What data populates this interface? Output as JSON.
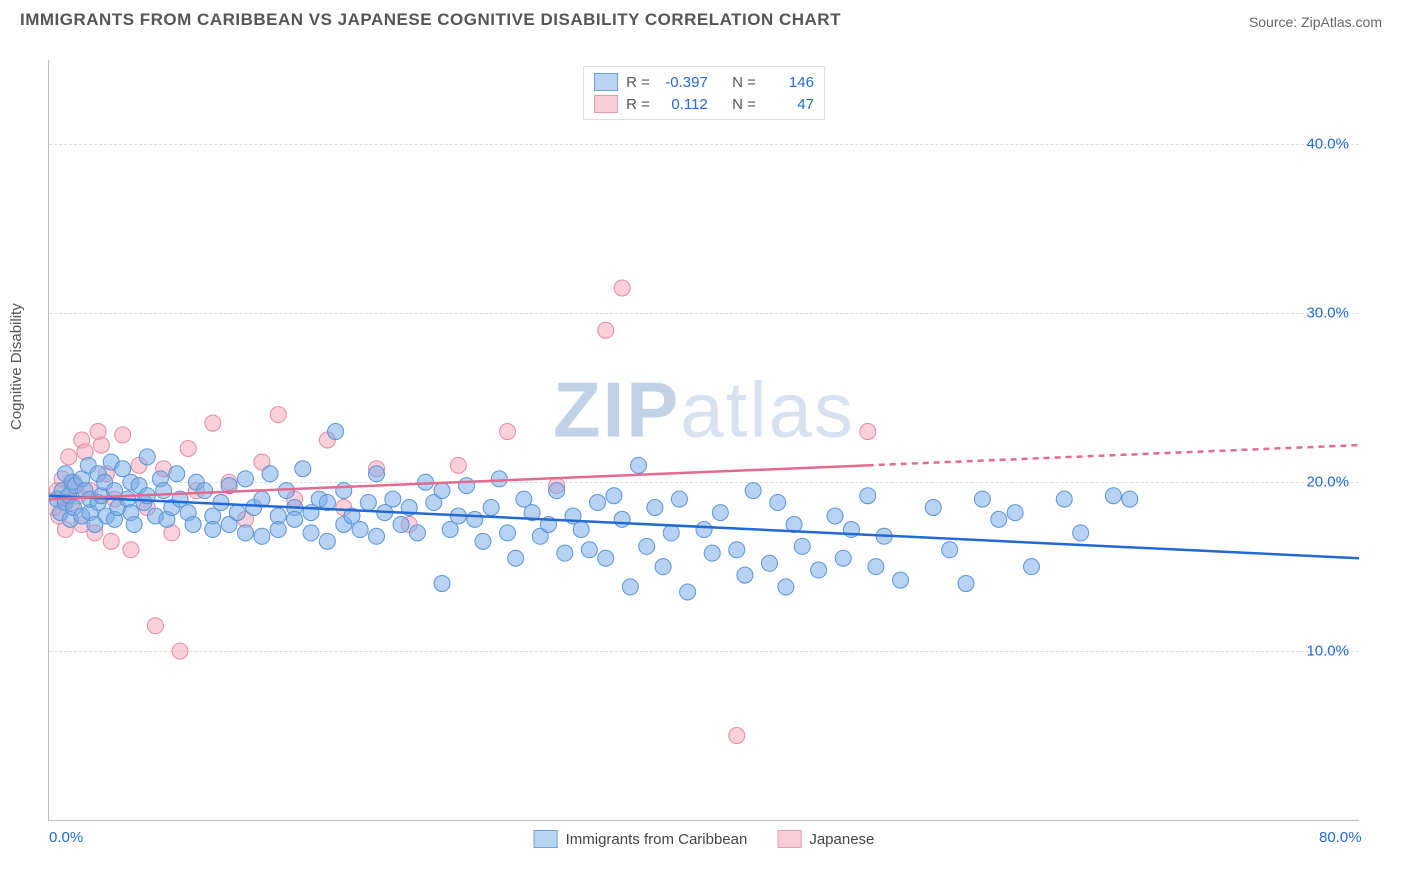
{
  "title": "IMMIGRANTS FROM CARIBBEAN VS JAPANESE COGNITIVE DISABILITY CORRELATION CHART",
  "source": "Source: ZipAtlas.com",
  "ylabel": "Cognitive Disability",
  "watermark_bold": "ZIP",
  "watermark_rest": "atlas",
  "chart": {
    "type": "scatter",
    "xlim": [
      0,
      80
    ],
    "ylim": [
      0,
      45
    ],
    "x_ticks": [
      {
        "v": 0,
        "label": "0.0%"
      },
      {
        "v": 80,
        "label": "80.0%"
      }
    ],
    "y_ticks": [
      {
        "v": 10,
        "label": "10.0%"
      },
      {
        "v": 20,
        "label": "20.0%"
      },
      {
        "v": 30,
        "label": "30.0%"
      },
      {
        "v": 40,
        "label": "40.0%"
      }
    ],
    "background_color": "#ffffff",
    "grid_color": "#dddddd",
    "axis_color": "#bbbbbb",
    "tick_text_color": "#2269d4",
    "marker_radius": 8,
    "marker_stroke_width": 1,
    "trend_line_width": 2.5,
    "series": [
      {
        "name": "Immigrants from Caribbean",
        "fill": "rgba(123,173,232,0.55)",
        "stroke": "#5a94d6",
        "swatch_fill": "#b9d4f2",
        "swatch_border": "#6aa1de",
        "R_label": "R =",
        "R": "-0.397",
        "N_label": "N =",
        "N": "146",
        "trend": {
          "x1": 0,
          "y1": 19.2,
          "x2": 80,
          "y2": 15.5,
          "color": "#2269d4",
          "dash": false
        },
        "points": [
          [
            0.5,
            19.0
          ],
          [
            0.7,
            18.2
          ],
          [
            0.8,
            19.5
          ],
          [
            1.0,
            20.5
          ],
          [
            1.0,
            18.8
          ],
          [
            1.2,
            19.2
          ],
          [
            1.3,
            17.8
          ],
          [
            1.4,
            20.0
          ],
          [
            1.5,
            18.5
          ],
          [
            1.6,
            19.8
          ],
          [
            2.0,
            20.2
          ],
          [
            2.0,
            18.0
          ],
          [
            2.2,
            19.5
          ],
          [
            2.4,
            21.0
          ],
          [
            2.5,
            18.2
          ],
          [
            2.5,
            19.0
          ],
          [
            2.8,
            17.5
          ],
          [
            3.0,
            20.5
          ],
          [
            3.0,
            18.8
          ],
          [
            3.2,
            19.2
          ],
          [
            3.4,
            20.0
          ],
          [
            3.5,
            18.0
          ],
          [
            3.8,
            21.2
          ],
          [
            4.0,
            19.5
          ],
          [
            4.0,
            17.8
          ],
          [
            4.2,
            18.5
          ],
          [
            4.5,
            20.8
          ],
          [
            4.8,
            19.0
          ],
          [
            5.0,
            18.2
          ],
          [
            5.0,
            20.0
          ],
          [
            5.2,
            17.5
          ],
          [
            5.5,
            19.8
          ],
          [
            5.8,
            18.8
          ],
          [
            6.0,
            21.5
          ],
          [
            6.0,
            19.2
          ],
          [
            6.5,
            18.0
          ],
          [
            6.8,
            20.2
          ],
          [
            7.0,
            19.5
          ],
          [
            7.2,
            17.8
          ],
          [
            7.5,
            18.5
          ],
          [
            7.8,
            20.5
          ],
          [
            8.0,
            19.0
          ],
          [
            8.5,
            18.2
          ],
          [
            8.8,
            17.5
          ],
          [
            9.0,
            20.0
          ],
          [
            9.5,
            19.5
          ],
          [
            10.0,
            18.0
          ],
          [
            10.0,
            17.2
          ],
          [
            10.5,
            18.8
          ],
          [
            11.0,
            19.8
          ],
          [
            11.0,
            17.5
          ],
          [
            11.5,
            18.2
          ],
          [
            12.0,
            20.2
          ],
          [
            12.0,
            17.0
          ],
          [
            12.5,
            18.5
          ],
          [
            13.0,
            19.0
          ],
          [
            13.0,
            16.8
          ],
          [
            13.5,
            20.5
          ],
          [
            14.0,
            18.0
          ],
          [
            14.0,
            17.2
          ],
          [
            14.5,
            19.5
          ],
          [
            15.0,
            18.5
          ],
          [
            15.0,
            17.8
          ],
          [
            15.5,
            20.8
          ],
          [
            16.0,
            18.2
          ],
          [
            16.0,
            17.0
          ],
          [
            16.5,
            19.0
          ],
          [
            17.0,
            18.8
          ],
          [
            17.0,
            16.5
          ],
          [
            17.5,
            23.0
          ],
          [
            18.0,
            19.5
          ],
          [
            18.0,
            17.5
          ],
          [
            18.5,
            18.0
          ],
          [
            19.0,
            17.2
          ],
          [
            19.5,
            18.8
          ],
          [
            20.0,
            20.5
          ],
          [
            20.0,
            16.8
          ],
          [
            20.5,
            18.2
          ],
          [
            21.0,
            19.0
          ],
          [
            21.5,
            17.5
          ],
          [
            22.0,
            18.5
          ],
          [
            22.5,
            17.0
          ],
          [
            23.0,
            20.0
          ],
          [
            23.5,
            18.8
          ],
          [
            24.0,
            19.5
          ],
          [
            24.0,
            14.0
          ],
          [
            24.5,
            17.2
          ],
          [
            25.0,
            18.0
          ],
          [
            25.5,
            19.8
          ],
          [
            26.0,
            17.8
          ],
          [
            26.5,
            16.5
          ],
          [
            27.0,
            18.5
          ],
          [
            27.5,
            20.2
          ],
          [
            28.0,
            17.0
          ],
          [
            28.5,
            15.5
          ],
          [
            29.0,
            19.0
          ],
          [
            29.5,
            18.2
          ],
          [
            30.0,
            16.8
          ],
          [
            30.5,
            17.5
          ],
          [
            31.0,
            19.5
          ],
          [
            31.5,
            15.8
          ],
          [
            32.0,
            18.0
          ],
          [
            32.5,
            17.2
          ],
          [
            33.0,
            16.0
          ],
          [
            33.5,
            18.8
          ],
          [
            34.0,
            15.5
          ],
          [
            34.5,
            19.2
          ],
          [
            35.0,
            17.8
          ],
          [
            35.5,
            13.8
          ],
          [
            36.0,
            21.0
          ],
          [
            36.5,
            16.2
          ],
          [
            37.0,
            18.5
          ],
          [
            37.5,
            15.0
          ],
          [
            38.0,
            17.0
          ],
          [
            38.5,
            19.0
          ],
          [
            39.0,
            13.5
          ],
          [
            40.0,
            17.2
          ],
          [
            40.5,
            15.8
          ],
          [
            41.0,
            18.2
          ],
          [
            42.0,
            16.0
          ],
          [
            42.5,
            14.5
          ],
          [
            43.0,
            19.5
          ],
          [
            44.0,
            15.2
          ],
          [
            44.5,
            18.8
          ],
          [
            45.0,
            13.8
          ],
          [
            45.5,
            17.5
          ],
          [
            46.0,
            16.2
          ],
          [
            47.0,
            14.8
          ],
          [
            48.0,
            18.0
          ],
          [
            48.5,
            15.5
          ],
          [
            49.0,
            17.2
          ],
          [
            50.0,
            19.2
          ],
          [
            50.5,
            15.0
          ],
          [
            51.0,
            16.8
          ],
          [
            52.0,
            14.2
          ],
          [
            54.0,
            18.5
          ],
          [
            55.0,
            16.0
          ],
          [
            56.0,
            14.0
          ],
          [
            57.0,
            19.0
          ],
          [
            58.0,
            17.8
          ],
          [
            59.0,
            18.2
          ],
          [
            60.0,
            15.0
          ],
          [
            62.0,
            19.0
          ],
          [
            63.0,
            17.0
          ],
          [
            65.0,
            19.2
          ],
          [
            66.0,
            19.0
          ]
        ]
      },
      {
        "name": "Japanese",
        "fill": "rgba(245,170,190,0.55)",
        "stroke": "#e48aa5",
        "swatch_fill": "#f7cdd8",
        "swatch_border": "#e99bb1",
        "R_label": "R =",
        "R": "0.112",
        "N_label": "N =",
        "N": "47",
        "trend": {
          "x1": 0,
          "y1": 19.0,
          "x2": 50,
          "y2": 21.0,
          "color": "#e36b8e",
          "dash": false
        },
        "trend_ext": {
          "x1": 50,
          "y1": 21.0,
          "x2": 80,
          "y2": 22.2,
          "color": "#e36b8e",
          "dash": true
        },
        "points": [
          [
            0.3,
            18.5
          ],
          [
            0.5,
            19.5
          ],
          [
            0.6,
            18.0
          ],
          [
            0.8,
            20.2
          ],
          [
            1.0,
            19.0
          ],
          [
            1.0,
            17.2
          ],
          [
            1.2,
            21.5
          ],
          [
            1.4,
            18.8
          ],
          [
            1.5,
            20.0
          ],
          [
            1.8,
            19.2
          ],
          [
            2.0,
            17.5
          ],
          [
            2.0,
            22.5
          ],
          [
            2.2,
            21.8
          ],
          [
            2.5,
            19.5
          ],
          [
            2.8,
            17.0
          ],
          [
            3.0,
            23.0
          ],
          [
            3.2,
            22.2
          ],
          [
            3.5,
            20.5
          ],
          [
            3.8,
            16.5
          ],
          [
            4.0,
            19.0
          ],
          [
            4.5,
            22.8
          ],
          [
            5.0,
            16.0
          ],
          [
            5.5,
            21.0
          ],
          [
            6.0,
            18.5
          ],
          [
            6.5,
            11.5
          ],
          [
            7.0,
            20.8
          ],
          [
            7.5,
            17.0
          ],
          [
            8.0,
            10.0
          ],
          [
            8.5,
            22.0
          ],
          [
            9.0,
            19.5
          ],
          [
            10.0,
            23.5
          ],
          [
            11.0,
            20.0
          ],
          [
            12.0,
            17.8
          ],
          [
            13.0,
            21.2
          ],
          [
            14.0,
            24.0
          ],
          [
            15.0,
            19.0
          ],
          [
            17.0,
            22.5
          ],
          [
            18.0,
            18.5
          ],
          [
            20.0,
            20.8
          ],
          [
            22.0,
            17.5
          ],
          [
            25.0,
            21.0
          ],
          [
            28.0,
            23.0
          ],
          [
            31.0,
            19.8
          ],
          [
            35.0,
            31.5
          ],
          [
            34.0,
            29.0
          ],
          [
            42.0,
            5.0
          ],
          [
            50.0,
            23.0
          ]
        ]
      }
    ]
  }
}
